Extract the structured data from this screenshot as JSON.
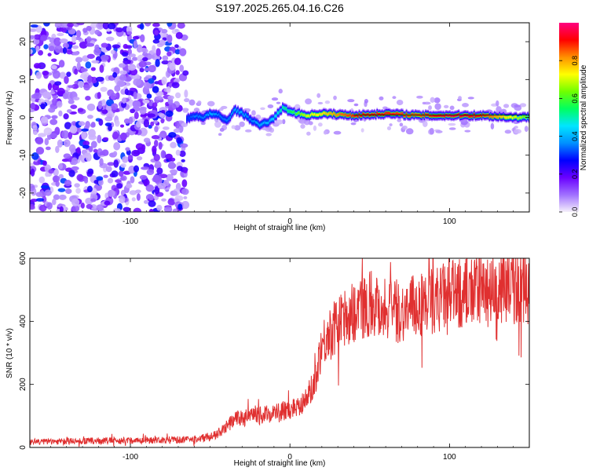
{
  "title": "S197.2025.265.04.16.C26",
  "chart_data": [
    {
      "type": "heatmap",
      "xlabel": "Height of straight line (km)",
      "ylabel": "Frequency (Hz)",
      "xlim": [
        -163,
        150
      ],
      "ylim": [
        -25,
        25
      ],
      "xticks": [
        -100,
        0,
        100
      ],
      "yticks": [
        -20,
        -10,
        0,
        10,
        20
      ],
      "colorbar": {
        "label": "Normalized spectral amplitude",
        "range": [
          0,
          1
        ],
        "ticks": [
          0.0,
          0.2,
          0.4,
          0.6,
          0.8
        ],
        "tick_labels": [
          "0.0",
          "0.2",
          "0.4",
          "0.6",
          "0.8"
        ],
        "colormap": [
          "#f5f0fb",
          "#a070ff",
          "#6a00ff",
          "#0000ff",
          "#0090ff",
          "#00e5ff",
          "#00ff60",
          "#70ff00",
          "#ffff00",
          "#ff9000",
          "#ff0000",
          "#ff0080"
        ]
      },
      "noise_region_km": [
        -163,
        -65
      ],
      "ridge": {
        "x": [
          -65,
          -60,
          -55,
          -50,
          -45,
          -40,
          -35,
          -30,
          -25,
          -20,
          -15,
          -10,
          -5,
          0,
          10,
          20,
          40,
          60,
          80,
          100,
          120,
          140,
          150
        ],
        "freq_hz": [
          -0.5,
          0.5,
          0.0,
          1.0,
          0.5,
          -1.0,
          2.0,
          1.0,
          -0.5,
          -2.0,
          -1.5,
          0.0,
          2.5,
          1.5,
          0.5,
          1.0,
          0.5,
          1.0,
          0.5,
          0.5,
          0.5,
          0.0,
          0.0
        ],
        "amplitude": [
          0.3,
          0.35,
          0.35,
          0.4,
          0.35,
          0.35,
          0.4,
          0.4,
          0.35,
          0.4,
          0.4,
          0.45,
          0.5,
          0.55,
          0.7,
          0.75,
          0.9,
          0.9,
          0.85,
          0.95,
          0.9,
          0.7,
          0.6
        ]
      }
    },
    {
      "type": "line",
      "xlabel": "Height of straight line (km)",
      "ylabel": "SNR (10 * v/v)",
      "xlim": [
        -163,
        150
      ],
      "ylim": [
        0,
        600
      ],
      "xticks": [
        -100,
        0,
        100
      ],
      "yticks": [
        0,
        200,
        400,
        600
      ],
      "color": "#e03030",
      "trend": {
        "x": [
          -163,
          -60,
          -45,
          -35,
          -20,
          -10,
          0,
          10,
          15,
          20,
          30,
          40,
          50,
          60,
          70,
          80,
          90,
          100,
          110,
          120,
          130,
          140,
          150
        ],
        "y": [
          18,
          25,
          40,
          90,
          100,
          110,
          120,
          150,
          200,
          330,
          390,
          430,
          460,
          440,
          430,
          450,
          470,
          480,
          490,
          495,
          500,
          505,
          505
        ]
      }
    }
  ]
}
